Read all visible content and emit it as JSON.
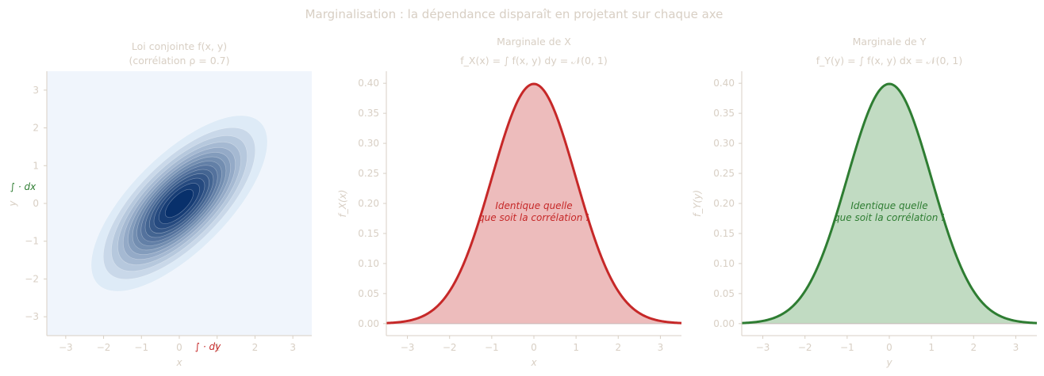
{
  "suptitle": "Marginalisation : la dépendance disparaît en projetant sur chaque axe",
  "colors": {
    "text": "#d8cfc4",
    "red": "#c62828",
    "red_fill": "#edbcbc",
    "green": "#2e7d32",
    "green_fill": "#c1dbc2",
    "blues_low": "#deebf7",
    "blues_high": "#08306b",
    "heat_bg": "#f0f5fc"
  },
  "chart_data": [
    {
      "type": "heatmap",
      "title_line1": "Loi conjointe f(x, y)",
      "title_line2": "(corrélation ρ = 0.7)",
      "xlabel": "x",
      "ylabel": "y",
      "xlim": [
        -3.5,
        3.5
      ],
      "ylim": [
        -3.5,
        3.5
      ],
      "xticks": [
        -3,
        -2,
        -1,
        0,
        1,
        2,
        3
      ],
      "yticks": [
        -3,
        -2,
        -1,
        0,
        1,
        2,
        3
      ],
      "rho": 0.7,
      "levels": 14,
      "annotation_x": "∫ · dy",
      "annotation_y": "∫ · dx"
    },
    {
      "type": "area",
      "title_line1": "Marginale de X",
      "title_line2": "f_X(x) = ∫ f(x, y) dy = 𝒩(0, 1)",
      "xlabel": "x",
      "ylabel": "f_X(x)",
      "xlim": [
        -3.5,
        3.5
      ],
      "ylim": [
        -0.02,
        0.42
      ],
      "xticks": [
        -3,
        -2,
        -1,
        0,
        1,
        2,
        3
      ],
      "yticks": [
        "0.00",
        "0.05",
        "0.10",
        "0.15",
        "0.20",
        "0.25",
        "0.30",
        "0.35",
        "0.40"
      ],
      "series": [
        {
          "x": [
            -3.5,
            -3,
            -2.5,
            -2,
            -1.5,
            -1,
            -0.5,
            0,
            0.5,
            1,
            1.5,
            2,
            2.5,
            3,
            3.5
          ],
          "y": [
            0.0009,
            0.0044,
            0.0175,
            0.054,
            0.1295,
            0.242,
            0.3521,
            0.3989,
            0.3521,
            0.242,
            0.1295,
            0.054,
            0.0175,
            0.0044,
            0.0009
          ]
        }
      ],
      "annotation_line1": "Identique quelle",
      "annotation_line2": "que soit la corrélation !"
    },
    {
      "type": "area",
      "title_line1": "Marginale de Y",
      "title_line2": "f_Y(y) = ∫ f(x, y) dx = 𝒩(0, 1)",
      "xlabel": "y",
      "ylabel": "f_Y(y)",
      "xlim": [
        -3.5,
        3.5
      ],
      "ylim": [
        -0.02,
        0.42
      ],
      "xticks": [
        -3,
        -2,
        -1,
        0,
        1,
        2,
        3
      ],
      "yticks": [
        "0.00",
        "0.05",
        "0.10",
        "0.15",
        "0.20",
        "0.25",
        "0.30",
        "0.35",
        "0.40"
      ],
      "series": [
        {
          "x": [
            -3.5,
            -3,
            -2.5,
            -2,
            -1.5,
            -1,
            -0.5,
            0,
            0.5,
            1,
            1.5,
            2,
            2.5,
            3,
            3.5
          ],
          "y": [
            0.0009,
            0.0044,
            0.0175,
            0.054,
            0.1295,
            0.242,
            0.3521,
            0.3989,
            0.3521,
            0.242,
            0.1295,
            0.054,
            0.0175,
            0.0044,
            0.0009
          ]
        }
      ],
      "annotation_line1": "Identique quelle",
      "annotation_line2": "que soit la corrélation !"
    }
  ]
}
